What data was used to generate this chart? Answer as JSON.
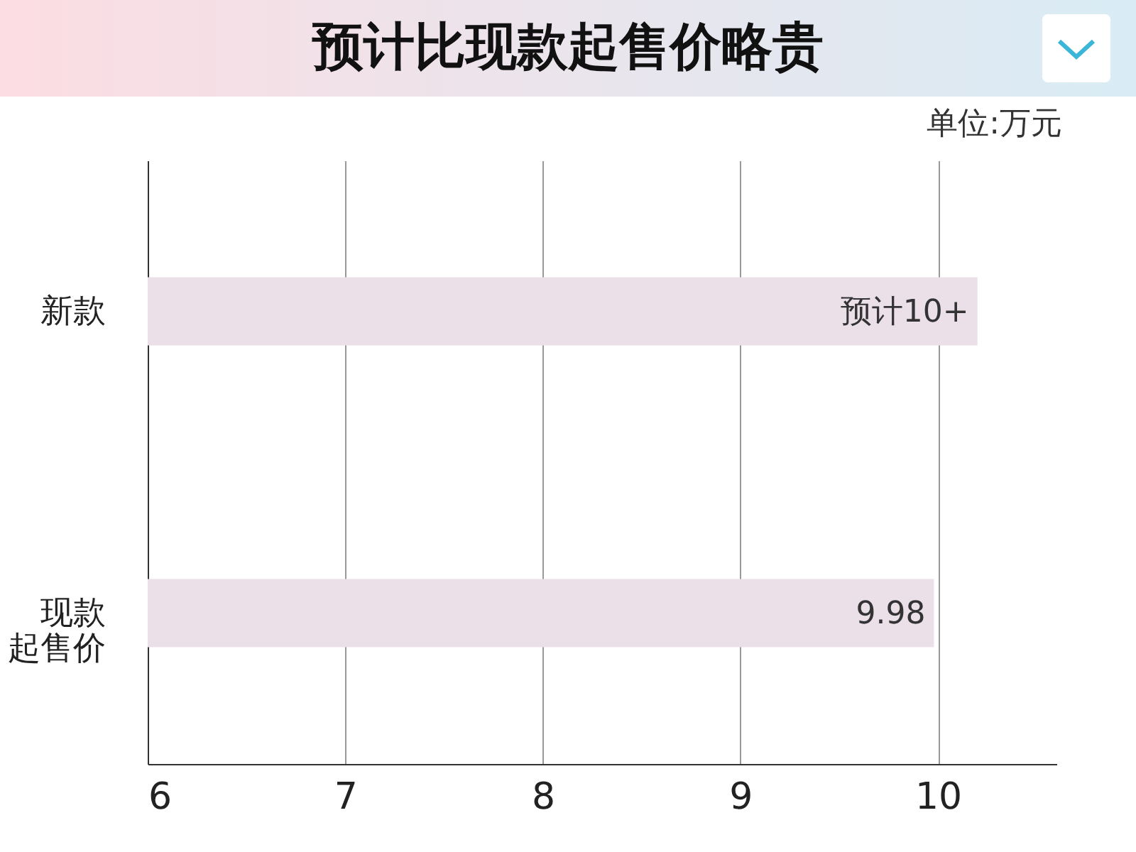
{
  "chart_data": {
    "type": "bar",
    "title": "预计比现款起售价略贵",
    "orientation": "horizontal",
    "categories": [
      "新款",
      "现款起售价"
    ],
    "values": [
      10.2,
      9.98
    ],
    "value_labels": [
      "预计10+",
      "9.98"
    ],
    "color": "#ebe0e8",
    "xlim": [
      6,
      10.6
    ],
    "xticks": [
      6,
      7,
      8,
      9,
      10
    ],
    "grid": "x",
    "annotations": [
      "单位:万元"
    ]
  }
}
